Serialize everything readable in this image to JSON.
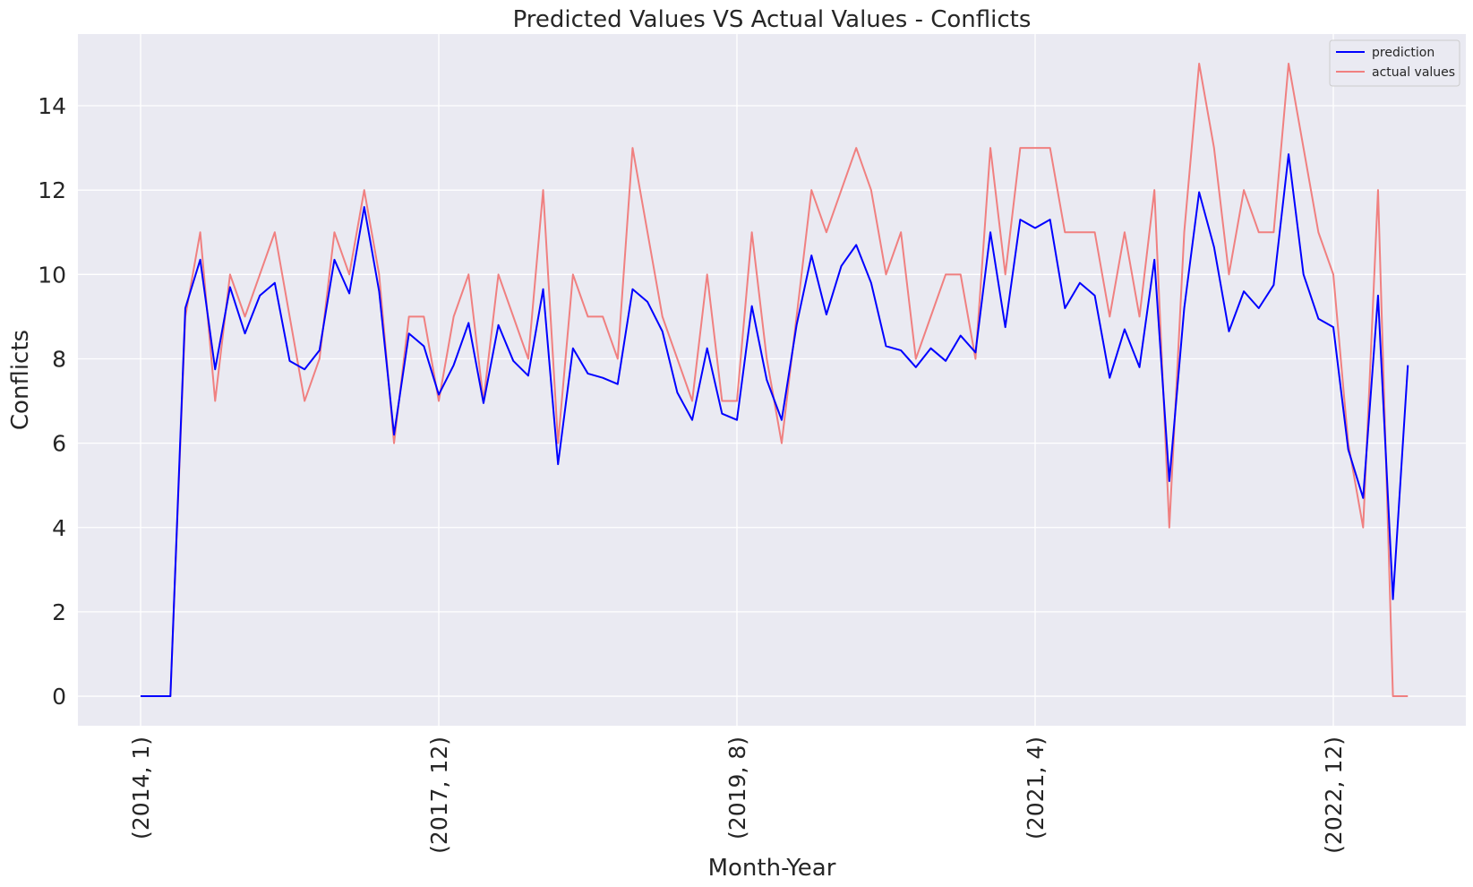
{
  "chart_data": {
    "type": "line",
    "title": "Predicted Values VS Actual Values - Conflicts",
    "xlabel": "Month-Year",
    "ylabel": "Conflicts",
    "ylim": [
      -0.7,
      15.7
    ],
    "yticks": [
      0,
      2,
      4,
      6,
      8,
      10,
      12,
      14
    ],
    "xticks": [
      {
        "index": 0,
        "label": "(2014, 1)"
      },
      {
        "index": 20,
        "label": "(2017, 12)"
      },
      {
        "index": 40,
        "label": "(2019, 8)"
      },
      {
        "index": 60,
        "label": "(2021, 4)"
      },
      {
        "index": 80,
        "label": "(2022, 12)"
      }
    ],
    "grid": true,
    "legend_position": "top-right",
    "background": "#eaeaf2",
    "series": [
      {
        "name": "prediction",
        "color": "#0000ff",
        "values": [
          0,
          0,
          0,
          9.2,
          10.35,
          7.75,
          9.7,
          8.6,
          9.5,
          9.8,
          7.95,
          7.75,
          8.2,
          10.35,
          9.55,
          11.6,
          9.6,
          6.2,
          8.6,
          8.3,
          7.15,
          7.85,
          8.85,
          6.95,
          8.8,
          7.95,
          7.6,
          9.65,
          5.5,
          8.25,
          7.65,
          7.55,
          7.4,
          9.65,
          9.35,
          8.65,
          7.2,
          6.55,
          8.25,
          6.7,
          6.55,
          9.25,
          7.5,
          6.55,
          8.8,
          10.45,
          9.05,
          10.2,
          10.7,
          9.8,
          8.3,
          8.2,
          7.8,
          8.25,
          7.95,
          8.55,
          8.15,
          11.0,
          8.75,
          11.3,
          11.1,
          11.3,
          9.2,
          9.8,
          9.5,
          7.55,
          8.7,
          7.8,
          10.35,
          5.1,
          9.2,
          11.95,
          10.65,
          8.65,
          9.6,
          9.2,
          9.75,
          12.85,
          10.0,
          8.95,
          8.75,
          5.85,
          4.7,
          9.5,
          2.3,
          7.85
        ]
      },
      {
        "name": "actual values",
        "color": "#f08080",
        "values": [
          0,
          0,
          0,
          9,
          11,
          7,
          10,
          9,
          10,
          11,
          9,
          7,
          8,
          11,
          10,
          12,
          10,
          6,
          9,
          9,
          7,
          9,
          10,
          7,
          10,
          9,
          8,
          12,
          6,
          10,
          9,
          9,
          8,
          13,
          11,
          9,
          8,
          7,
          10,
          7,
          7,
          11,
          8,
          6,
          9,
          12,
          11,
          12,
          13,
          12,
          10,
          11,
          8,
          9,
          10,
          10,
          8,
          13,
          10,
          13,
          13,
          13,
          11,
          11,
          11,
          9,
          11,
          9,
          12,
          4,
          11,
          15,
          13,
          10,
          12,
          11,
          11,
          15,
          13,
          11,
          10,
          6,
          4,
          12,
          0,
          0
        ]
      }
    ]
  }
}
